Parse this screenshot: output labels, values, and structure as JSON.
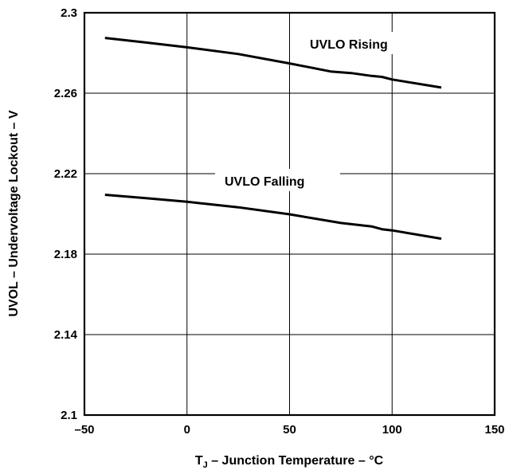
{
  "chart_data": {
    "type": "line",
    "title": "",
    "xlabel": {
      "prefix": "T",
      "subscript": "J",
      "suffix": " – Junction Temperature – °C"
    },
    "ylabel": "UVOL  – Undervoltage Lockout – V",
    "xlim": [
      -50,
      150
    ],
    "ylim": [
      2.1,
      2.3
    ],
    "xticks": [
      -50,
      0,
      50,
      100,
      150
    ],
    "xtick_labels": [
      "–50",
      "0",
      "50",
      "100",
      "150"
    ],
    "yticks": [
      2.1,
      2.14,
      2.18,
      2.22,
      2.26,
      2.3
    ],
    "ytick_labels": [
      "2.1",
      "2.14",
      "2.18",
      "2.22",
      "2.26",
      "2.3"
    ],
    "grid": true,
    "series": [
      {
        "name": "UVLO Rising",
        "x": [
          -40,
          -20,
          0,
          25,
          50,
          70,
          80,
          90,
          95,
          100,
          124
        ],
        "y": [
          2.2875,
          2.2852,
          2.2828,
          2.2795,
          2.2748,
          2.2708,
          2.27,
          2.2686,
          2.2681,
          2.2668,
          2.2628
        ]
      },
      {
        "name": "UVLO Falling",
        "x": [
          -40,
          -20,
          0,
          25,
          50,
          75,
          90,
          95,
          100,
          124
        ],
        "y": [
          2.2095,
          2.2078,
          2.206,
          2.2033,
          2.1998,
          2.1955,
          2.1938,
          2.1924,
          2.1918,
          2.1877
        ]
      }
    ],
    "annotations": [
      {
        "text": "UVLO Rising",
        "series": 0
      },
      {
        "text": "UVLO Falling",
        "series": 1
      }
    ]
  }
}
